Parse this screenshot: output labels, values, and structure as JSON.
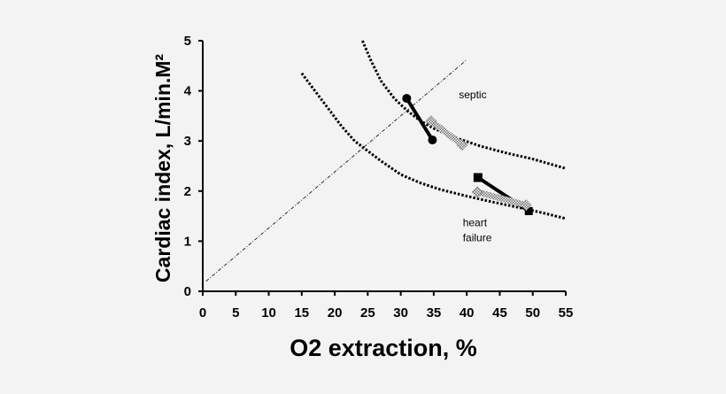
{
  "chart_data": {
    "type": "line",
    "title": "",
    "xlabel": "O2 extraction, %",
    "ylabel": "Cardiac index, L/min.M²",
    "xlim": [
      0,
      55
    ],
    "ylim": [
      0,
      5
    ],
    "xticks": [
      "0",
      "5",
      "10",
      "15",
      "20",
      "25",
      "30",
      "35",
      "40",
      "45",
      "50",
      "55"
    ],
    "yticks": [
      "0",
      "1",
      "2",
      "3",
      "4",
      "5"
    ],
    "grid": false,
    "legend": "none",
    "annotations": [
      {
        "text": "septic",
        "x": 38.8,
        "y": 3.85
      },
      {
        "text": "heart",
        "x": 39.4,
        "y": 1.3
      },
      {
        "text": "failure",
        "x": 39.4,
        "y": 1.0
      }
    ],
    "series": [
      {
        "role": "identity-line",
        "style": "dash-dot thin",
        "x": [
          0.5,
          40
        ],
        "y": [
          0.2,
          4.62
        ]
      },
      {
        "role": "upper-curve",
        "style": "dotted",
        "x": [
          24.2,
          25.5,
          27,
          29,
          31,
          33,
          35,
          38,
          42,
          46,
          50,
          55
        ],
        "y": [
          5.0,
          4.6,
          4.2,
          3.85,
          3.6,
          3.4,
          3.25,
          3.08,
          2.9,
          2.76,
          2.64,
          2.45
        ]
      },
      {
        "role": "lower-curve",
        "style": "dotted",
        "x": [
          15,
          17,
          19,
          21,
          23,
          25,
          27,
          30,
          33,
          36,
          40,
          44,
          48,
          52,
          55
        ],
        "y": [
          4.35,
          4.0,
          3.65,
          3.3,
          3.0,
          2.8,
          2.6,
          2.33,
          2.16,
          2.03,
          1.9,
          1.78,
          1.67,
          1.55,
          1.45
        ]
      },
      {
        "role": "septic-measured",
        "style": "solid thick",
        "marker": "circle",
        "x": [
          30.9,
          34.8
        ],
        "y": [
          3.85,
          3.02
        ]
      },
      {
        "role": "septic-predicted",
        "style": "dotted band",
        "marker": "hatched diamond",
        "x": [
          34.6,
          39.3
        ],
        "y": [
          3.4,
          2.92
        ]
      },
      {
        "role": "heart-failure-measured",
        "style": "solid thick",
        "marker": "square",
        "x": [
          41.7,
          49.4
        ],
        "y": [
          2.27,
          1.6
        ]
      },
      {
        "role": "heart-failure-predicted",
        "style": "dotted band",
        "marker": "hatched diamond",
        "x": [
          41.6,
          49.0
        ],
        "y": [
          1.98,
          1.72
        ]
      }
    ]
  }
}
